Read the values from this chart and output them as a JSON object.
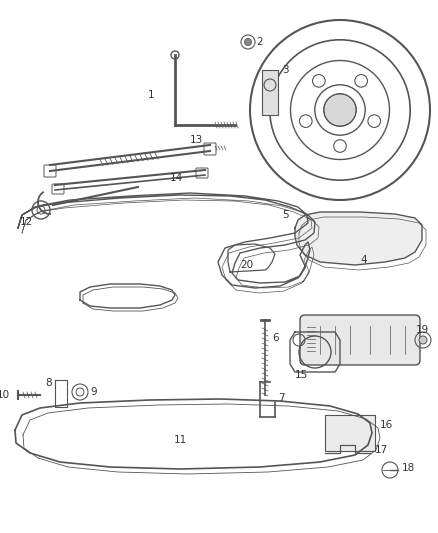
{
  "bg_color": "#ffffff",
  "line_color": "#555555",
  "label_color": "#333333",
  "label_fontsize": 7.5,
  "figsize": [
    4.38,
    5.33
  ],
  "dpi": 100
}
